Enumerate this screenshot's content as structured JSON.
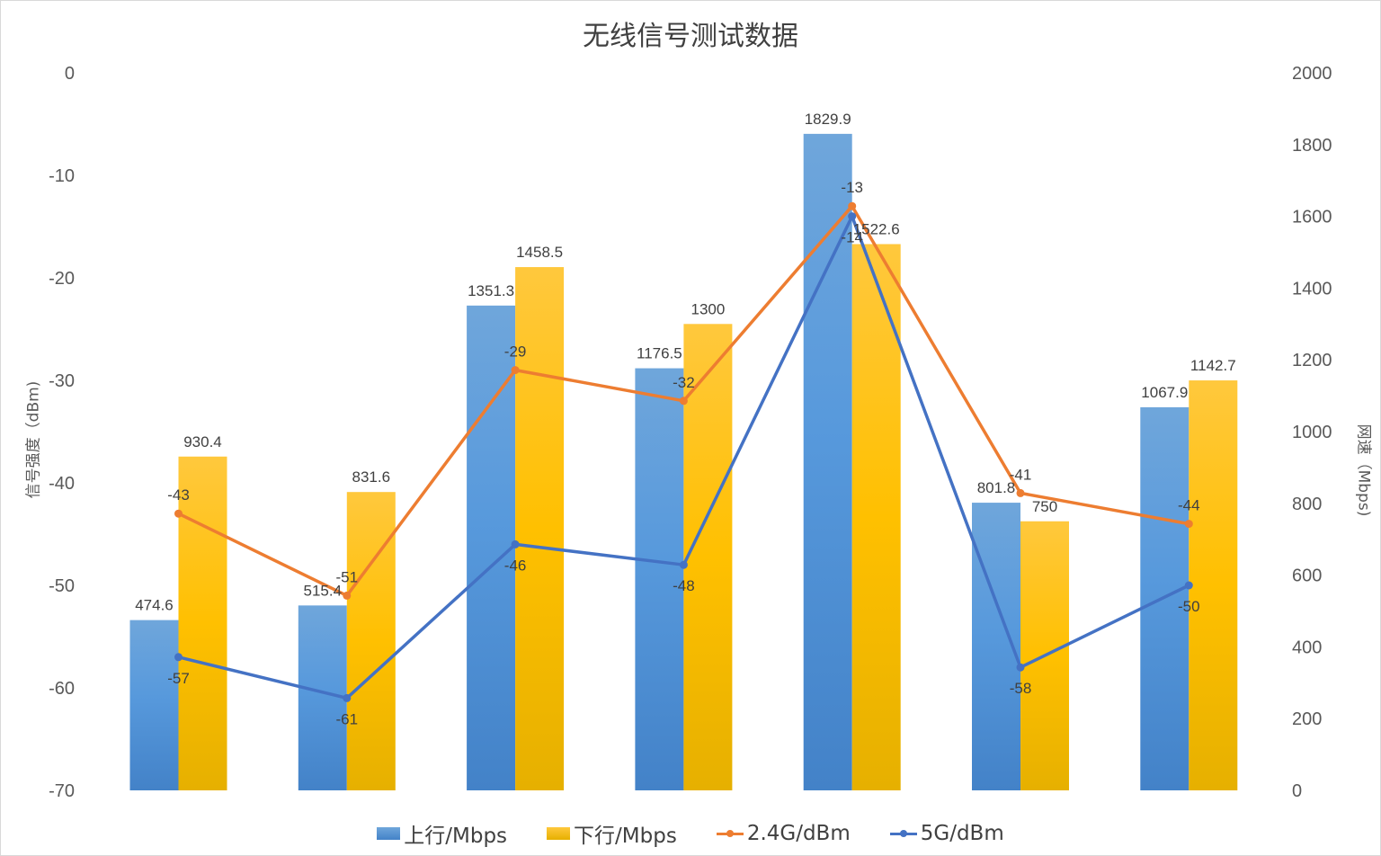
{
  "chart_data": {
    "type": "bar",
    "title": "无线信号测试数据",
    "categories": [
      "",
      "",
      "",
      "",
      "",
      "",
      ""
    ],
    "series": [
      {
        "name": "上行/Mbps",
        "type": "bar",
        "axis": "right",
        "color": "#5b9bd5",
        "values": [
          474.6,
          515.4,
          1351.3,
          1176.5,
          1829.9,
          801.8,
          1067.9
        ]
      },
      {
        "name": "下行/Mbps",
        "type": "bar",
        "axis": "right",
        "color": "#ffc000",
        "values": [
          930.4,
          831.6,
          1458.5,
          1300,
          1522.6,
          750,
          1142.7
        ]
      },
      {
        "name": "2.4G/dBm",
        "type": "line",
        "axis": "left",
        "color": "#ed7d31",
        "values": [
          -43,
          -51,
          -29,
          -32,
          -13,
          -41,
          -44
        ]
      },
      {
        "name": "5G/dBm",
        "type": "line",
        "axis": "left",
        "color": "#4472c4",
        "values": [
          -57,
          -61,
          -46,
          -48,
          -14,
          -58,
          -50
        ]
      }
    ],
    "ylabel": "信号强度（dBm)",
    "y2label": "网速（Mbps)",
    "ylim": [
      -70,
      0
    ],
    "y2lim": [
      0,
      2000
    ],
    "yticks": [
      "0",
      "-10",
      "-20",
      "-30",
      "-40",
      "-50",
      "-60",
      "-70"
    ],
    "y2ticks": [
      "2000",
      "1800",
      "1600",
      "1400",
      "1200",
      "1000",
      "800",
      "600",
      "400",
      "200",
      "0"
    ],
    "grid": false,
    "legend_position": "bottom"
  }
}
